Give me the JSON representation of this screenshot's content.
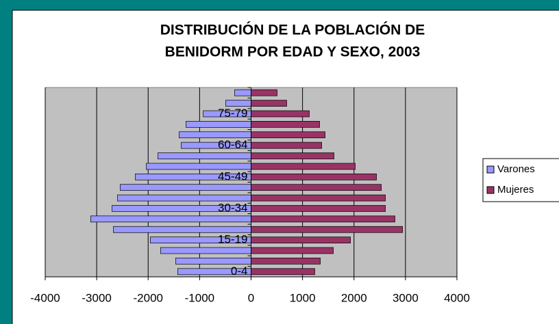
{
  "chart_data": {
    "type": "bar",
    "orientation": "horizontal",
    "title": [
      "DISTRIBUCIÓN DE LA POBLACIÓN DE",
      "BENIDORM POR EDAD Y SEXO, 2003"
    ],
    "categories": [
      "0-4",
      null,
      null,
      "15-19",
      null,
      null,
      "30-34",
      null,
      null,
      "45-49",
      null,
      null,
      "60-64",
      null,
      null,
      "75-79",
      null,
      null
    ],
    "series": [
      {
        "name": "Varones",
        "color": "#9999ff",
        "values": [
          -1425,
          -1465,
          -1758,
          -1957,
          -2676,
          -3116,
          -2703,
          -2596,
          -2543,
          -2250,
          -2037,
          -1811,
          -1358,
          -1398,
          -1265,
          -930,
          -493,
          -320
        ]
      },
      {
        "name": "Mujeres",
        "color": "#993366",
        "values": [
          1238,
          1345,
          1598,
          1931,
          2943,
          2796,
          2610,
          2610,
          2530,
          2437,
          2024,
          1611,
          1372,
          1438,
          1332,
          1132,
          692,
          506
        ]
      }
    ],
    "xlim": [
      -4000,
      4000
    ],
    "xticks": [
      -4000,
      -3000,
      -2000,
      -1000,
      0,
      1000,
      2000,
      3000,
      4000
    ],
    "grid": true,
    "legend": "right"
  }
}
